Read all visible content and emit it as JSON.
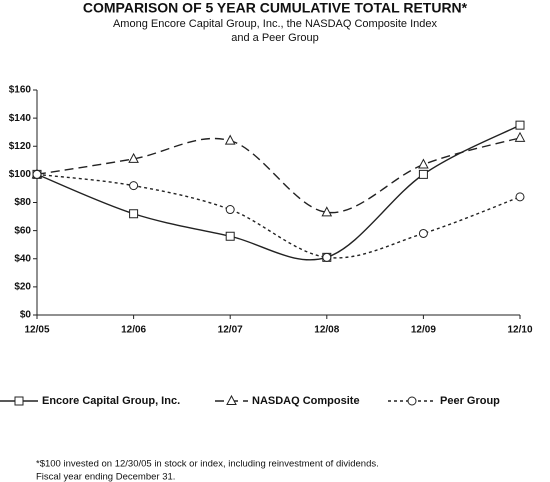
{
  "chart_data": {
    "type": "line",
    "title": "COMPARISON OF 5 YEAR CUMULATIVE TOTAL RETURN*",
    "subtitle": [
      "Among Encore Capital Group, Inc., the NASDAQ Composite Index",
      "and a Peer Group"
    ],
    "categories": [
      "12/05",
      "12/06",
      "12/07",
      "12/08",
      "12/09",
      "12/10"
    ],
    "series": [
      {
        "name": "Encore Capital Group, Inc.",
        "color": "#222222",
        "dash": "none",
        "marker": "square",
        "values": [
          100,
          72,
          56,
          41,
          100,
          135
        ]
      },
      {
        "name": "NASDAQ Composite",
        "color": "#222222",
        "dash": "9,5",
        "marker": "triangle",
        "values": [
          100,
          111,
          124,
          73,
          107,
          126
        ]
      },
      {
        "name": "Peer Group",
        "color": "#222222",
        "dash": "3,3",
        "marker": "circle",
        "values": [
          100,
          92,
          75,
          41,
          58,
          84
        ]
      }
    ],
    "ylim": [
      0,
      160
    ],
    "yticks": [
      {
        "value": 0,
        "label": "$0"
      },
      {
        "value": 20,
        "label": "$20"
      },
      {
        "value": 40,
        "label": "$40"
      },
      {
        "value": 60,
        "label": "$60"
      },
      {
        "value": 80,
        "label": "$80"
      },
      {
        "value": 100,
        "label": "$100"
      },
      {
        "value": 120,
        "label": "$120"
      },
      {
        "value": 140,
        "label": "$140"
      },
      {
        "value": 160,
        "label": "$160"
      }
    ],
    "grid": false,
    "footnote": [
      "*$100 invested on 12/30/05 in stock or index, including reinvestment of dividends.",
      "Fiscal year ending December 31."
    ]
  }
}
